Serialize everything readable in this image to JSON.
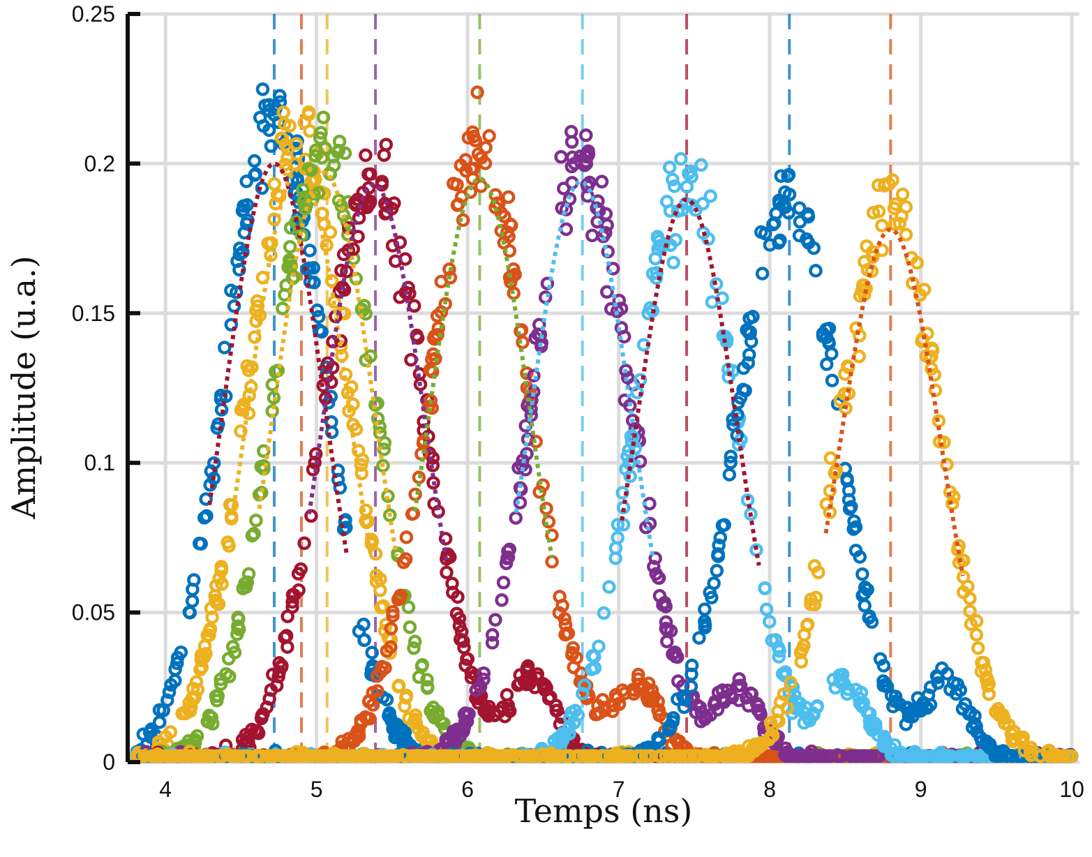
{
  "chart_data": {
    "type": "scatter",
    "title": "",
    "xlabel": "Temps (ns)",
    "ylabel": "Amplitude (u.a.)",
    "xlim": [
      3.75,
      10.05
    ],
    "ylim": [
      0,
      0.25
    ],
    "x_ticks": [
      4,
      5,
      6,
      7,
      8,
      9,
      10
    ],
    "x_tick_labels": [
      "4",
      "5",
      "6",
      "7",
      "8",
      "9",
      "10"
    ],
    "y_ticks": [
      0,
      0.05,
      0.1,
      0.15,
      0.2,
      0.25
    ],
    "y_tick_labels": [
      "0",
      "0.05",
      "0.1",
      "0.15",
      "0.2",
      "0.25"
    ],
    "grid": true,
    "legend": "none",
    "series": [
      {
        "color": "#0072BD",
        "center": 4.72,
        "peak": 0.215,
        "sigma": 0.33,
        "fit_peak": 0.2,
        "fit_color": "#A2142F",
        "side_lobe": 0.0
      },
      {
        "color": "#EDB120",
        "center": 4.88,
        "peak": 0.21,
        "sigma": 0.33,
        "fit_peak": 0.198,
        "fit_color": "#EDB120",
        "side_lobe": 0.0
      },
      {
        "color": "#77AC30",
        "center": 5.05,
        "peak": 0.205,
        "sigma": 0.33,
        "fit_peak": 0.197,
        "fit_color": "#EDB120",
        "side_lobe": 0.0
      },
      {
        "color": "#A2142F",
        "center": 5.38,
        "peak": 0.195,
        "sigma": 0.33,
        "fit_peak": 0.193,
        "fit_color": "#7E2F8E",
        "side_lobe": 0.028
      },
      {
        "color": "#D95319",
        "center": 6.08,
        "peak": 0.205,
        "sigma": 0.33,
        "fit_peak": 0.195,
        "fit_color": "#77AC30",
        "side_lobe": 0.024
      },
      {
        "color": "#7E2F8E",
        "center": 6.75,
        "peak": 0.2,
        "sigma": 0.33,
        "fit_peak": 0.194,
        "fit_color": "#4DBEEE",
        "side_lobe": 0.024
      },
      {
        "color": "#4DBEEE",
        "center": 7.45,
        "peak": 0.195,
        "sigma": 0.33,
        "fit_peak": 0.188,
        "fit_color": "#A2142F",
        "side_lobe": 0.026
      },
      {
        "color": "#0072BD",
        "center": 8.12,
        "peak": 0.19,
        "sigma": 0.33,
        "fit_peak": 0.0,
        "fit_color": "#0072BD",
        "side_lobe": 0.027
      },
      {
        "color": "#EDB120",
        "center": 8.8,
        "peak": 0.185,
        "sigma": 0.33,
        "fit_peak": 0.178,
        "fit_color": "#D95319",
        "side_lobe": 0.0
      }
    ],
    "vertical_markers": [
      {
        "x": 4.72,
        "color": "#0072BD"
      },
      {
        "x": 4.9,
        "color": "#D95319"
      },
      {
        "x": 5.07,
        "color": "#EDB120"
      },
      {
        "x": 5.39,
        "color": "#7E2F8E"
      },
      {
        "x": 6.08,
        "color": "#77AC30"
      },
      {
        "x": 6.76,
        "color": "#4DBEEE"
      },
      {
        "x": 7.45,
        "color": "#A2142F"
      },
      {
        "x": 8.13,
        "color": "#0072BD"
      },
      {
        "x": 8.8,
        "color": "#D95319"
      }
    ]
  }
}
